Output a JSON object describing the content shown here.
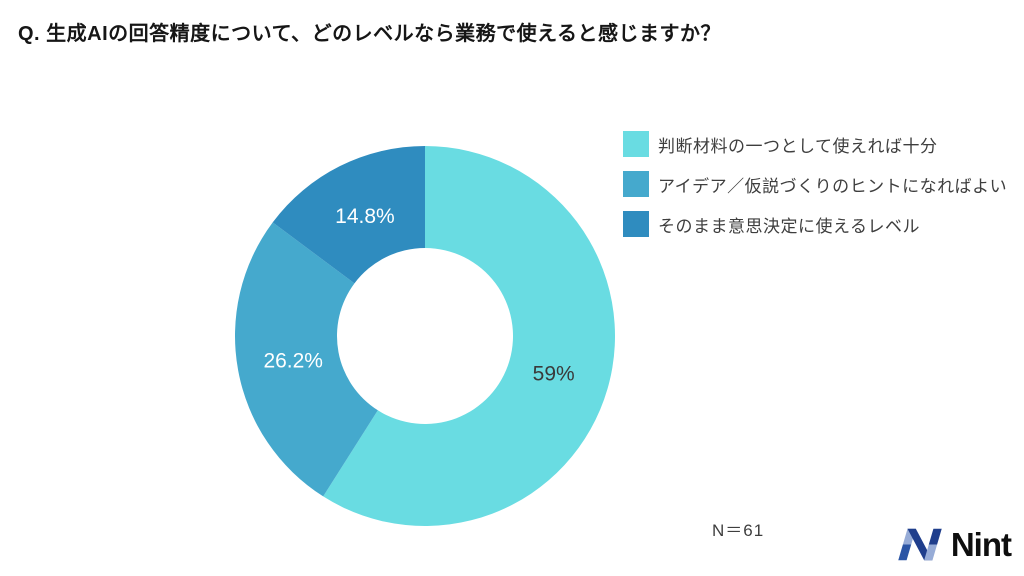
{
  "title": "Q. 生成AIの回答精度について、どのレベルなら業務で使えると感じますか？",
  "sample_size": "N＝61",
  "chart_data": {
    "type": "pie",
    "donut": true,
    "title": "Q. 生成AIの回答精度について、どのレベルなら業務で使えると感じますか？",
    "unit": "%",
    "start_angle_deg": 0,
    "direction": "clockwise",
    "legend_position": "right",
    "series": [
      {
        "label": "判断材料の一つとして使えれば十分",
        "value": 59,
        "display": "59%",
        "color": "#69dce2",
        "label_color": "#3a3a3a"
      },
      {
        "label": "アイデア／仮説づくりのヒントになればよい",
        "value": 26.2,
        "display": "26.2%",
        "color": "#45a9cd",
        "label_color": "#ffffff"
      },
      {
        "label": "そのまま意思決定に使えるレベル",
        "value": 14.8,
        "display": "14.8%",
        "color": "#2f8cbf",
        "label_color": "#ffffff"
      }
    ]
  },
  "logo": {
    "text": "Nint",
    "mark_light": "#97acd7",
    "mark_blue": "#2b55a5",
    "mark_navy": "#1f3e8c",
    "text_color": "#0e0e0e"
  }
}
